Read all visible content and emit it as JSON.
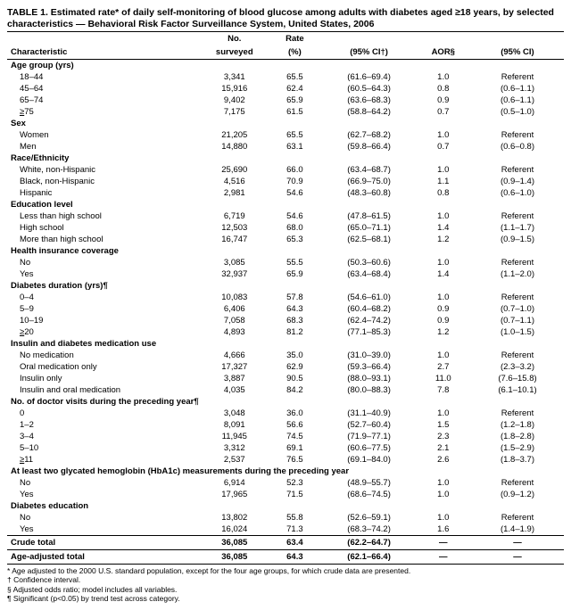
{
  "title": "TABLE 1. Estimated rate* of daily self-monitoring of blood glucose among adults with diabetes aged ≥18 years, by selected characteristics — Behavioral Risk Factor Surveillance System, United States, 2006",
  "columns": {
    "c0": "Characteristic",
    "c1a": "No.",
    "c1b": "surveyed",
    "c2a": "Rate",
    "c2b": "(%)",
    "c3": "(95% CI†)",
    "c4": "AOR§",
    "c5": "(95% CI)"
  },
  "groups": [
    {
      "header": "Age group (yrs)",
      "rows": [
        {
          "l": "18–44",
          "n": "3,341",
          "r": "65.5",
          "ci1": "(61.6–69.4)",
          "aor": "1.0",
          "ci2": "Referent"
        },
        {
          "l": "45–64",
          "n": "15,916",
          "r": "62.4",
          "ci1": "(60.5–64.3)",
          "aor": "0.8",
          "ci2": "(0.6–1.1)"
        },
        {
          "l": "65–74",
          "n": "9,402",
          "r": "65.9",
          "ci1": "(63.6–68.3)",
          "aor": "0.9",
          "ci2": "(0.6–1.1)"
        },
        {
          "l": "≥75",
          "n": "7,175",
          "r": "61.5",
          "ci1": "(58.8–64.2)",
          "aor": "0.7",
          "ci2": "(0.5–1.0)",
          "u": true
        }
      ]
    },
    {
      "header": "Sex",
      "rows": [
        {
          "l": "Women",
          "n": "21,205",
          "r": "65.5",
          "ci1": "(62.7–68.2)",
          "aor": "1.0",
          "ci2": "Referent"
        },
        {
          "l": "Men",
          "n": "14,880",
          "r": "63.1",
          "ci1": "(59.8–66.4)",
          "aor": "0.7",
          "ci2": "(0.6–0.8)"
        }
      ]
    },
    {
      "header": "Race/Ethnicity",
      "rows": [
        {
          "l": "White, non-Hispanic",
          "n": "25,690",
          "r": "66.0",
          "ci1": "(63.4–68.7)",
          "aor": "1.0",
          "ci2": "Referent"
        },
        {
          "l": "Black, non-Hispanic",
          "n": "4,516",
          "r": "70.9",
          "ci1": "(66.9–75.0)",
          "aor": "1.1",
          "ci2": "(0.9–1.4)"
        },
        {
          "l": "Hispanic",
          "n": "2,981",
          "r": "54.6",
          "ci1": "(48.3–60.8)",
          "aor": "0.8",
          "ci2": "(0.6–1.0)"
        }
      ]
    },
    {
      "header": "Education level",
      "rows": [
        {
          "l": "Less than high school",
          "n": "6,719",
          "r": "54.6",
          "ci1": "(47.8–61.5)",
          "aor": "1.0",
          "ci2": "Referent"
        },
        {
          "l": "High school",
          "n": "12,503",
          "r": "68.0",
          "ci1": "(65.0–71.1)",
          "aor": "1.4",
          "ci2": "(1.1–1.7)"
        },
        {
          "l": "More than high school",
          "n": "16,747",
          "r": "65.3",
          "ci1": "(62.5–68.1)",
          "aor": "1.2",
          "ci2": "(0.9–1.5)"
        }
      ]
    },
    {
      "header": "Health insurance coverage",
      "rows": [
        {
          "l": "No",
          "n": "3,085",
          "r": "55.5",
          "ci1": "(50.3–60.6)",
          "aor": "1.0",
          "ci2": "Referent"
        },
        {
          "l": "Yes",
          "n": "32,937",
          "r": "65.9",
          "ci1": "(63.4–68.4)",
          "aor": "1.4",
          "ci2": "(1.1–2.0)"
        }
      ]
    },
    {
      "header": "Diabetes duration (yrs)¶",
      "rows": [
        {
          "l": "0–4",
          "n": "10,083",
          "r": "57.8",
          "ci1": "(54.6–61.0)",
          "aor": "1.0",
          "ci2": "Referent"
        },
        {
          "l": "5–9",
          "n": "6,406",
          "r": "64.3",
          "ci1": "(60.4–68.2)",
          "aor": "0.9",
          "ci2": "(0.7–1.0)"
        },
        {
          "l": "10–19",
          "n": "7,058",
          "r": "68.3",
          "ci1": "(62.4–74.2)",
          "aor": "0.9",
          "ci2": "(0.7–1.1)"
        },
        {
          "l": "≥20",
          "n": "4,893",
          "r": "81.2",
          "ci1": "(77.1–85.3)",
          "aor": "1.2",
          "ci2": "(1.0–1.5)",
          "u": true
        }
      ]
    },
    {
      "header": "Insulin and diabetes medication use",
      "rows": [
        {
          "l": "No medication",
          "n": "4,666",
          "r": "35.0",
          "ci1": "(31.0–39.0)",
          "aor": "1.0",
          "ci2": "Referent"
        },
        {
          "l": "Oral medication only",
          "n": "17,327",
          "r": "62.9",
          "ci1": "(59.3–66.4)",
          "aor": "2.7",
          "ci2": "(2.3–3.2)"
        },
        {
          "l": "Insulin only",
          "n": "3,887",
          "r": "90.5",
          "ci1": "(88.0–93.1)",
          "aor": "11.0",
          "ci2": "(7.6–15.8)"
        },
        {
          "l": "Insulin and oral medication",
          "n": "4,035",
          "r": "84.2",
          "ci1": "(80.0–88.3)",
          "aor": "7.8",
          "ci2": "(6.1–10.1)"
        }
      ]
    },
    {
      "header": "No. of doctor visits during the preceding year¶",
      "rows": [
        {
          "l": "0",
          "n": "3,048",
          "r": "36.0",
          "ci1": "(31.1–40.9)",
          "aor": "1.0",
          "ci2": "Referent"
        },
        {
          "l": "1–2",
          "n": "8,091",
          "r": "56.6",
          "ci1": "(52.7–60.4)",
          "aor": "1.5",
          "ci2": "(1.2–1.8)"
        },
        {
          "l": "3–4",
          "n": "11,945",
          "r": "74.5",
          "ci1": "(71.9–77.1)",
          "aor": "2.3",
          "ci2": "(1.8–2.8)"
        },
        {
          "l": "5–10",
          "n": "3,312",
          "r": "69.1",
          "ci1": "(60.6–77.5)",
          "aor": "2.1",
          "ci2": "(1.5–2.9)"
        },
        {
          "l": "≥11",
          "n": "2,537",
          "r": "76.5",
          "ci1": "(69.1–84.0)",
          "aor": "2.6",
          "ci2": "(1.8–3.7)",
          "u": true
        }
      ]
    },
    {
      "header": "At least two glycated hemoglobin (HbA1c) measurements during the preceding year",
      "rows": [
        {
          "l": "No",
          "n": "6,914",
          "r": "52.3",
          "ci1": "(48.9–55.7)",
          "aor": "1.0",
          "ci2": "Referent"
        },
        {
          "l": "Yes",
          "n": "17,965",
          "r": "71.5",
          "ci1": "(68.6–74.5)",
          "aor": "1.0",
          "ci2": "(0.9–1.2)"
        }
      ]
    },
    {
      "header": "Diabetes education",
      "rows": [
        {
          "l": "No",
          "n": "13,802",
          "r": "55.8",
          "ci1": "(52.6–59.1)",
          "aor": "1.0",
          "ci2": "Referent"
        },
        {
          "l": "Yes",
          "n": "16,024",
          "r": "71.3",
          "ci1": "(68.3–74.2)",
          "aor": "1.6",
          "ci2": "(1.4–1.9)"
        }
      ]
    }
  ],
  "totals": [
    {
      "l": "Crude total",
      "n": "36,085",
      "r": "63.4",
      "ci1": "(62.2–64.7)",
      "aor": "—",
      "ci2": "—"
    },
    {
      "l": "Age-adjusted total",
      "n": "36,085",
      "r": "64.3",
      "ci1": "(62.1–66.4)",
      "aor": "—",
      "ci2": "—"
    }
  ],
  "footnotes": [
    "* Age adjusted to the 2000 U.S. standard population, except for the four age groups, for which crude data are presented.",
    "† Confidence interval.",
    "§ Adjusted odds ratio; model includes all variables.",
    "¶ Significant (p<0.05) by trend test across category."
  ]
}
